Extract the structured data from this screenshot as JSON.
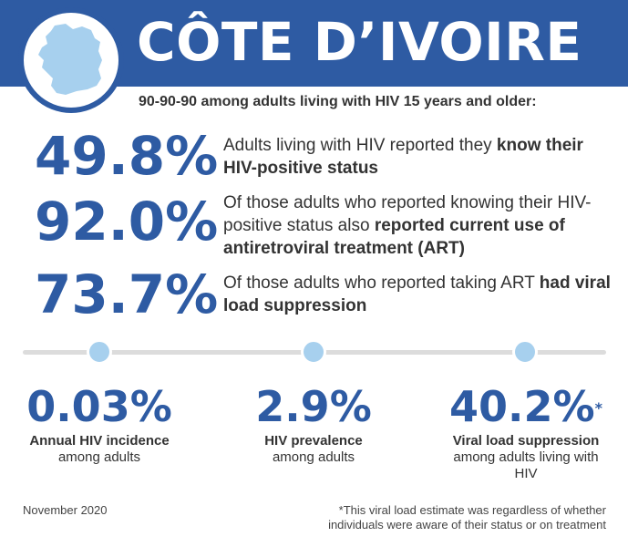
{
  "header": {
    "country": "CÔTE D’IVOIRE",
    "map_icon": "cote-divoire-map-icon",
    "banner_color": "#2e5ba3"
  },
  "subtitle": "90-90-90 among adults living with HIV 15 years and older:",
  "stats": [
    {
      "value": "49.8%",
      "text": "Adults living with HIV reported they ",
      "bold": "know their HIV-positive status",
      "tail": ""
    },
    {
      "value": "92.0%",
      "text": "Of those adults who reported knowing their HIV-positive status also ",
      "bold": "reported current use of antiretroviral treatment (ART)",
      "tail": ""
    },
    {
      "value": "73.7%",
      "text": "Of those adults who reported taking ART ",
      "bold": "had viral load suppression",
      "tail": ""
    }
  ],
  "bottom": [
    {
      "value": "0.03%",
      "label": "Annual HIV incidence",
      "sub": "among adults",
      "mark": ""
    },
    {
      "value": "2.9%",
      "label": "HIV prevalence",
      "sub": "among adults",
      "mark": ""
    },
    {
      "value": "40.2%",
      "label": "Viral load suppression",
      "sub": "among adults living with HIV",
      "mark": "*"
    }
  ],
  "footer": {
    "date": "November 2020",
    "note_line1": "*This viral load estimate was regardless of whether",
    "note_line2": "individuals were aware of their status or on treatment"
  },
  "colors": {
    "accent": "#2e5ba3",
    "dot": "#a7d0ee",
    "line": "#dcdcdc",
    "map": "#a7d0ee"
  }
}
